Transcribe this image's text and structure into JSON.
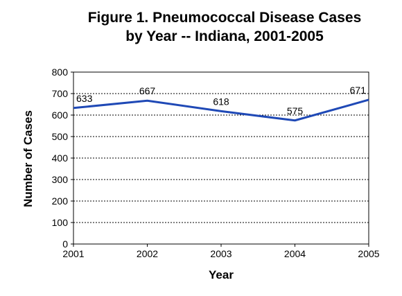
{
  "chart_data": {
    "type": "line",
    "title": "Figure 1. Pneumococcal Disease Cases",
    "subtitle": "by Year --  Indiana, 2001-2005",
    "xlabel": "Year",
    "ylabel": "Number of Cases",
    "categories": [
      "2001",
      "2002",
      "2003",
      "2004",
      "2005"
    ],
    "series": [
      {
        "values": [
          633,
          667,
          618,
          575,
          671
        ]
      }
    ],
    "data_labels": [
      "633",
      "667",
      "618",
      "575",
      "671"
    ],
    "ylim": [
      0,
      800
    ],
    "y_ticks": [
      "0",
      "100",
      "200",
      "300",
      "400",
      "500",
      "600",
      "700",
      "800"
    ],
    "grid": true,
    "grid_style": "dotted-horizontal",
    "legend": "none",
    "colors": {
      "line": "#1f49b6",
      "frame": "#000000",
      "grid": "#000000"
    }
  }
}
